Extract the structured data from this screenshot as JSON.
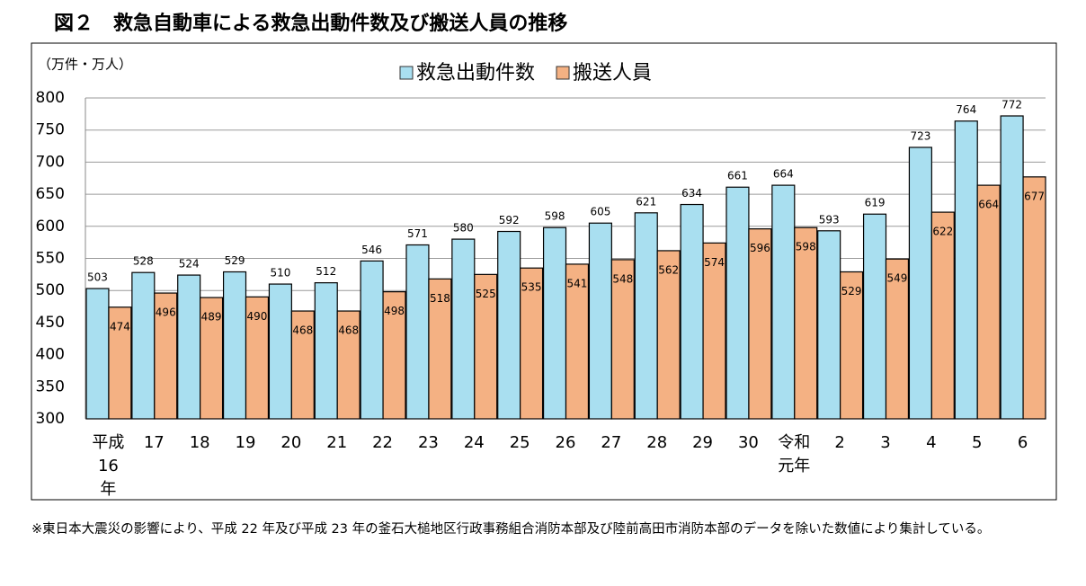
{
  "chart_data": {
    "type": "bar",
    "title": "図２　救急自動車による救急出動件数及び搬送人員の推移",
    "y_label": "（万件・万人）",
    "categories": [
      "平成16年",
      "17",
      "18",
      "19",
      "20",
      "21",
      "22",
      "23",
      "24",
      "25",
      "26",
      "27",
      "28",
      "29",
      "30",
      "令和元年",
      "2",
      "3",
      "4",
      "5",
      "6"
    ],
    "series": [
      {
        "name": "救急出動件数",
        "color": "#a9dff0",
        "values": [
          503,
          528,
          524,
          529,
          510,
          512,
          546,
          571,
          580,
          592,
          598,
          605,
          621,
          634,
          661,
          664,
          593,
          619,
          723,
          764,
          772
        ]
      },
      {
        "name": "搬送人員",
        "color": "#f4b183",
        "values": [
          474,
          496,
          489,
          490,
          468,
          468,
          498,
          518,
          525,
          535,
          541,
          548,
          562,
          574,
          596,
          598,
          529,
          549,
          622,
          664,
          677
        ]
      }
    ],
    "ylim": [
      300,
      800
    ],
    "yticks": [
      300,
      350,
      400,
      450,
      500,
      550,
      600,
      650,
      700,
      750,
      800
    ],
    "grid": true,
    "footnote": "※東日本大震災の影響により、平成 22 年及び平成 23 年の釜石大槌地区行政事務組合消防本部及び陸前高田市消防本部のデータを除いた数値により集計している。"
  }
}
